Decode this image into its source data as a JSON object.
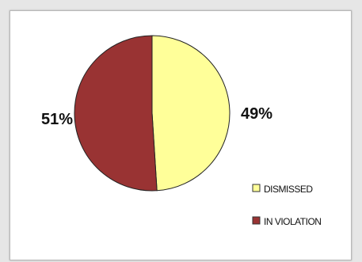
{
  "chart_data": {
    "type": "pie",
    "categories": [
      "DISMISSED",
      "IN VIOLATION"
    ],
    "values": [
      49,
      51
    ],
    "labels": [
      "49%",
      "51%"
    ],
    "colors": [
      "#ffff99",
      "#993333"
    ],
    "legend_position": "bottom-right",
    "title": ""
  }
}
